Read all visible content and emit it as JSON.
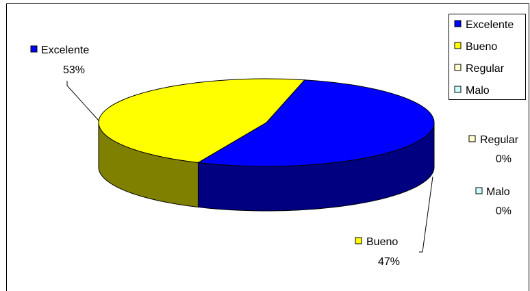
{
  "chart_data": {
    "type": "pie",
    "style": "3d",
    "categories": [
      "Excelente",
      "Bueno",
      "Regular",
      "Malo"
    ],
    "values": [
      53,
      47,
      0,
      0
    ],
    "percent_labels": [
      "53%",
      "47%",
      "0%",
      "0%"
    ],
    "title": "",
    "legend": {
      "position": "top-right",
      "entries": [
        "Excelente",
        "Bueno",
        "Regular",
        "Malo"
      ]
    },
    "colors": {
      "top": [
        "#0000FF",
        "#FFFF00",
        "#FFFFCC",
        "#CCFFFF"
      ],
      "side": [
        "#000080",
        "#808000",
        "#C0C099",
        "#99C0C0"
      ]
    }
  }
}
